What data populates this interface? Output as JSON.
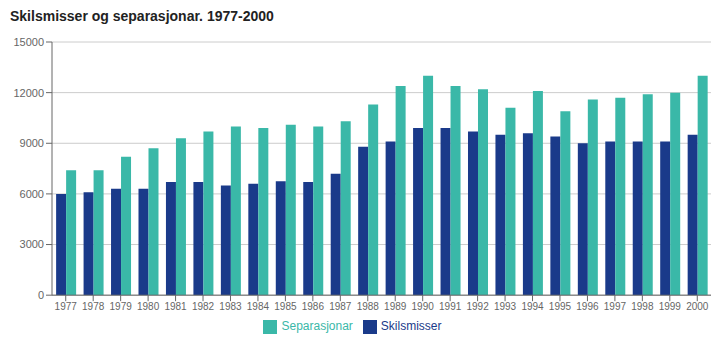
{
  "chart_data": {
    "type": "bar",
    "title": "Skilsmisser og separasjonar. 1977-2000",
    "categories": [
      "1977",
      "1978",
      "1979",
      "1980",
      "1981",
      "1982",
      "1983",
      "1984",
      "1985",
      "1986",
      "1987",
      "1988",
      "1989",
      "1990",
      "1991",
      "1992",
      "1993",
      "1994",
      "1995",
      "1996",
      "1997",
      "1998",
      "1999",
      "2000"
    ],
    "series": [
      {
        "name": "Skilsmisser",
        "color": "#1a3a8a",
        "values": [
          6000,
          6100,
          6300,
          6300,
          6700,
          6700,
          6500,
          6600,
          6750,
          6700,
          7200,
          8800,
          9100,
          9900,
          9900,
          9700,
          9500,
          9600,
          9400,
          9000,
          9100,
          9100,
          9100,
          9500
        ]
      },
      {
        "name": "Separasjonar",
        "color": "#3ab8a8",
        "values": [
          7400,
          7400,
          8200,
          8700,
          9300,
          9700,
          10000,
          9900,
          10100,
          10000,
          10300,
          11300,
          12400,
          13000,
          12400,
          12200,
          11100,
          12100,
          10900,
          11600,
          11700,
          11900,
          12000,
          13000
        ]
      }
    ],
    "ylim": [
      0,
      15000
    ],
    "yticks": [
      0,
      3000,
      6000,
      9000,
      12000,
      15000
    ],
    "grid": true,
    "legend": "bottom"
  }
}
